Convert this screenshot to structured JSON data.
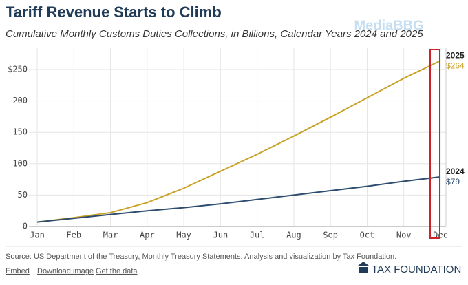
{
  "chart_data": {
    "type": "line",
    "title": "Tariff Revenue Starts to Climb",
    "subtitle": "Cumulative Monthly Customs Duties Collections, in Billions, Calendar Years 2024 and 2025",
    "categories": [
      "Jan",
      "Feb",
      "Mar",
      "Apr",
      "May",
      "Jun",
      "Jul",
      "Aug",
      "Sep",
      "Oct",
      "Nov",
      "Dec"
    ],
    "series": [
      {
        "name": "2025",
        "color": "#c9a227",
        "values": [
          7,
          14,
          22,
          38,
          61,
          88,
          115,
          144,
          174,
          205,
          236,
          264
        ],
        "value_labels": [
          null,
          null,
          null,
          null,
          null,
          null,
          null,
          null,
          null,
          null,
          null,
          "$264"
        ]
      },
      {
        "name": "2024",
        "color": "#2e4d6e",
        "values": [
          7,
          13,
          19,
          25,
          30,
          36,
          43,
          50,
          57,
          64,
          72,
          79
        ],
        "value_labels": [
          null,
          null,
          null,
          null,
          null,
          null,
          null,
          null,
          null,
          null,
          null,
          "$79"
        ]
      }
    ],
    "ylim": [
      0,
      284
    ],
    "yticks": [
      0,
      50,
      100,
      150,
      200,
      {
        "value": 250,
        "label": "$250"
      }
    ],
    "grid": true,
    "source": "Source: US Department of the Treasury, Monthly Treasury Statements. Analysis and visualization by Tax Foundation.",
    "links": [
      "Embed",
      "Download image",
      "Get the data"
    ],
    "logo": "TAX FOUNDATION",
    "watermark": "MediaBBG"
  }
}
